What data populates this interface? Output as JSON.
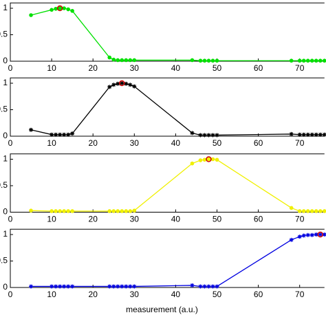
{
  "chart_data": [
    {
      "type": "line",
      "marker": "dot",
      "x": [
        5,
        10,
        11,
        12,
        13,
        14,
        15,
        24,
        25,
        26,
        27,
        28,
        29,
        30,
        44,
        46,
        47,
        48,
        49,
        50,
        68,
        70,
        71,
        72,
        73,
        74,
        75,
        76
      ],
      "series": [
        {
          "color": "#00e000",
          "values": [
            0.87,
            0.97,
            0.99,
            1.0,
            1.0,
            0.98,
            0.95,
            0.07,
            0.03,
            0.02,
            0.02,
            0.02,
            0.02,
            0.02,
            0.02,
            0.01,
            0.01,
            0.01,
            0.01,
            0.01,
            0.01,
            0.01,
            0.01,
            0.01,
            0.01,
            0.01,
            0.01,
            0.01
          ]
        }
      ],
      "highlight": {
        "x": 12,
        "y": 1.0,
        "color": "#d00000"
      },
      "xlim": [
        0,
        76
      ],
      "ylim": [
        0,
        1.1
      ],
      "xticks": [
        0,
        10,
        20,
        30,
        40,
        50,
        60,
        70
      ],
      "yticks": [
        0,
        0.5,
        1
      ]
    },
    {
      "type": "line",
      "marker": "star",
      "x": [
        5,
        10,
        11,
        12,
        13,
        14,
        15,
        24,
        25,
        26,
        27,
        28,
        29,
        30,
        44,
        46,
        47,
        48,
        49,
        50,
        68,
        70,
        71,
        72,
        73,
        74,
        75,
        76
      ],
      "series": [
        {
          "color": "#000000",
          "values": [
            0.12,
            0.03,
            0.03,
            0.03,
            0.03,
            0.03,
            0.05,
            0.93,
            0.97,
            0.99,
            1.0,
            0.99,
            0.97,
            0.94,
            0.06,
            0.02,
            0.02,
            0.02,
            0.02,
            0.02,
            0.04,
            0.03,
            0.03,
            0.03,
            0.03,
            0.03,
            0.03,
            0.03
          ]
        }
      ],
      "highlight": {
        "x": 27,
        "y": 1.0,
        "color": "#d00000"
      },
      "xlim": [
        0,
        76
      ],
      "ylim": [
        0,
        1.1
      ],
      "xticks": [
        0,
        10,
        20,
        30,
        40,
        50,
        60,
        70
      ],
      "yticks": [
        0,
        0.5,
        1
      ]
    },
    {
      "type": "line",
      "marker": "dot",
      "x": [
        5,
        10,
        11,
        12,
        13,
        14,
        15,
        24,
        25,
        26,
        27,
        28,
        29,
        30,
        44,
        46,
        47,
        48,
        49,
        50,
        68,
        70,
        71,
        72,
        73,
        74,
        75,
        76
      ],
      "series": [
        {
          "color": "#f0f000",
          "values": [
            0.03,
            0.02,
            0.02,
            0.02,
            0.02,
            0.02,
            0.02,
            0.02,
            0.02,
            0.02,
            0.02,
            0.02,
            0.02,
            0.03,
            0.92,
            0.98,
            0.99,
            1.0,
            1.0,
            0.99,
            0.08,
            0.02,
            0.02,
            0.02,
            0.02,
            0.02,
            0.02,
            0.02
          ]
        }
      ],
      "highlight": {
        "x": 48,
        "y": 1.0,
        "color": "#d00000"
      },
      "xlim": [
        0,
        76
      ],
      "ylim": [
        0,
        1.1
      ],
      "xticks": [
        0,
        10,
        20,
        30,
        40,
        50,
        60,
        70
      ],
      "yticks": [
        0,
        0.5,
        1
      ]
    },
    {
      "type": "line",
      "marker": "star",
      "x": [
        5,
        10,
        11,
        12,
        13,
        14,
        15,
        24,
        25,
        26,
        27,
        28,
        29,
        30,
        44,
        46,
        47,
        48,
        49,
        50,
        68,
        70,
        71,
        72,
        73,
        74,
        75,
        76
      ],
      "series": [
        {
          "color": "#0000e0",
          "values": [
            0.02,
            0.02,
            0.02,
            0.02,
            0.02,
            0.02,
            0.02,
            0.02,
            0.02,
            0.02,
            0.02,
            0.02,
            0.02,
            0.02,
            0.04,
            0.02,
            0.02,
            0.02,
            0.02,
            0.02,
            0.9,
            0.96,
            0.98,
            0.99,
            0.99,
            1.0,
            1.0,
            1.0
          ]
        }
      ],
      "highlight": {
        "x": 75,
        "y": 1.0,
        "color": "#d00000"
      },
      "xlim": [
        0,
        76
      ],
      "ylim": [
        0,
        1.1
      ],
      "xticks": [
        0,
        10,
        20,
        30,
        40,
        50,
        60,
        70
      ],
      "yticks": [
        0,
        0.5,
        1
      ],
      "xlabel": "measurement (a.u.)"
    }
  ]
}
